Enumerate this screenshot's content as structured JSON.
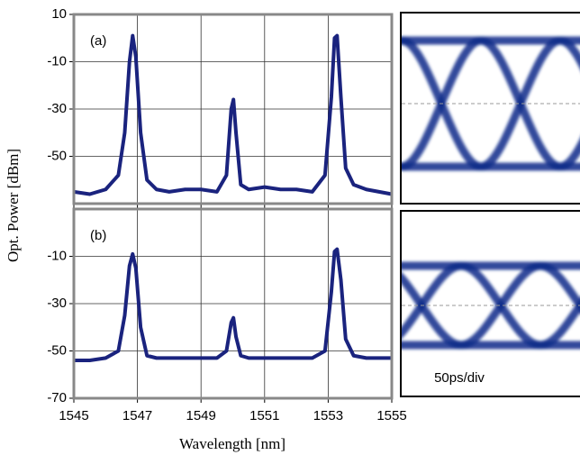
{
  "chart_data": [
    {
      "type": "line",
      "label": "(a)",
      "ylabel": "Opt. Power [dBm]",
      "x": [
        1545,
        1545.5,
        1546,
        1546.4,
        1546.6,
        1546.75,
        1546.85,
        1546.95,
        1547.1,
        1547.3,
        1547.6,
        1548,
        1548.5,
        1549,
        1549.5,
        1549.8,
        1549.95,
        1550.02,
        1550.1,
        1550.25,
        1550.5,
        1551,
        1551.5,
        1552,
        1552.5,
        1552.9,
        1553.1,
        1553.2,
        1553.28,
        1553.4,
        1553.55,
        1553.8,
        1554.2,
        1554.6,
        1555
      ],
      "values": [
        -65,
        -66,
        -64,
        -58,
        -40,
        -10,
        1,
        -8,
        -40,
        -60,
        -64,
        -65,
        -64,
        -64,
        -65,
        -58,
        -30,
        -26,
        -40,
        -62,
        -64,
        -63,
        -64,
        -64,
        -65,
        -58,
        -25,
        0,
        1,
        -25,
        -55,
        -62,
        -64,
        -65,
        -66
      ],
      "color": "#1a237e",
      "xlim": [
        1545,
        1555
      ],
      "ylim": [
        -70,
        10
      ],
      "yticks": [
        10,
        -10,
        -30,
        -50
      ],
      "xticks": [
        1545,
        1547,
        1549,
        1551,
        1553,
        1555
      ],
      "grid": true
    },
    {
      "type": "line",
      "label": "(b)",
      "xlabel": "Wavelength [nm]",
      "x": [
        1545,
        1545.5,
        1546,
        1546.4,
        1546.6,
        1546.75,
        1546.85,
        1546.95,
        1547.1,
        1547.3,
        1547.6,
        1548,
        1548.5,
        1549,
        1549.5,
        1549.8,
        1549.95,
        1550.02,
        1550.1,
        1550.25,
        1550.5,
        1551,
        1551.5,
        1552,
        1552.5,
        1552.9,
        1553.1,
        1553.2,
        1553.28,
        1553.4,
        1553.55,
        1553.8,
        1554.2,
        1554.6,
        1555
      ],
      "values": [
        -54,
        -54,
        -53,
        -50,
        -35,
        -14,
        -9,
        -15,
        -40,
        -52,
        -53,
        -53,
        -53,
        -53,
        -53,
        -50,
        -38,
        -36,
        -44,
        -52,
        -53,
        -53,
        -53,
        -53,
        -53,
        -50,
        -25,
        -8,
        -7,
        -20,
        -45,
        -52,
        -53,
        -53,
        -53
      ],
      "color": "#1a237e",
      "xlim": [
        1545,
        1555
      ],
      "ylim": [
        -70,
        10
      ],
      "yticks": [
        -10,
        -30,
        -50,
        -70
      ],
      "xticks": [
        1545,
        1547,
        1549,
        1551,
        1553,
        1555
      ],
      "grid": true
    }
  ],
  "eye_diagram": {
    "label": "50ps/div"
  }
}
